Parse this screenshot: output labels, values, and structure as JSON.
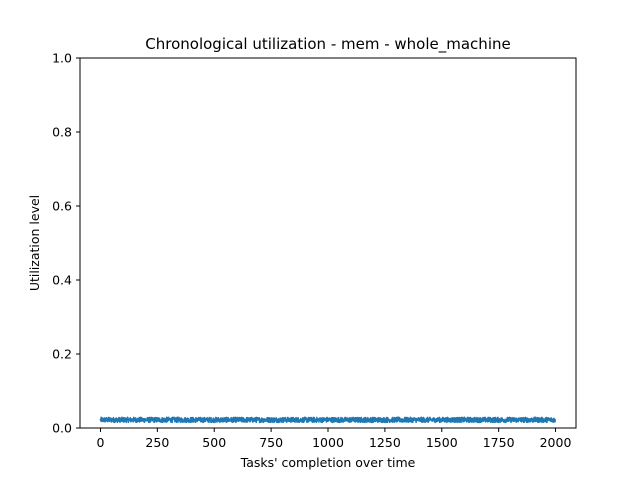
{
  "chart_data": {
    "type": "line",
    "title": "Chronological utilization - mem - whole_machine",
    "xlabel": "Tasks' completion over time",
    "ylabel": "Utilization level",
    "xlim": [
      -90,
      2090
    ],
    "ylim": [
      0,
      1.0
    ],
    "xticks": [
      0,
      250,
      500,
      750,
      1000,
      1250,
      1500,
      1750,
      2000
    ],
    "yticks": [
      0.0,
      0.2,
      0.4,
      0.6,
      0.8,
      1.0
    ],
    "ytick_labels": [
      "0.0",
      "0.2",
      "0.4",
      "0.6",
      "0.8",
      "1.0"
    ],
    "grid": false,
    "series": [
      {
        "color": "#1f77b4",
        "x_start": 0,
        "x_end": 1999,
        "n_points": 2000,
        "y_mean": 0.022,
        "y_min": 0.015,
        "y_max": 0.029
      }
    ]
  }
}
